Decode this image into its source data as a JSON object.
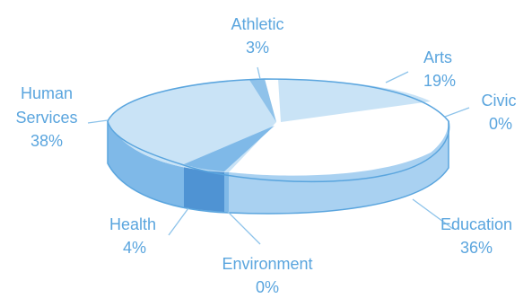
{
  "chart_data": {
    "type": "pie",
    "style": "3d-exploded-tilted",
    "categories": [
      "Arts",
      "Civic",
      "Education",
      "Environment",
      "Health",
      "Human Services",
      "Athletic"
    ],
    "values": [
      19,
      0,
      36,
      0,
      4,
      38,
      3
    ],
    "labels": [
      {
        "category": "Arts",
        "value": "19%"
      },
      {
        "category": "Civic",
        "value": "0%"
      },
      {
        "category": "Education",
        "value": "36%"
      },
      {
        "category": "Environment",
        "value": "0%"
      },
      {
        "category": "Health",
        "value": "4%"
      },
      {
        "category": "Human Services",
        "value": "38%"
      },
      {
        "category": "Athletic",
        "value": "3%"
      }
    ],
    "human_services_label_lines": [
      "Human",
      "Services"
    ],
    "legend": "none",
    "colors": {
      "top_blue": "#c9e3f6",
      "top_white": "#ffffff",
      "side_light": "#a9d1f1",
      "side_mid": "#7fb9e8",
      "side_dark": "#5d9fd9",
      "edge": "#5aa5de",
      "label_text": "#5aa5de",
      "leader_line": "#8dc3ea"
    }
  }
}
